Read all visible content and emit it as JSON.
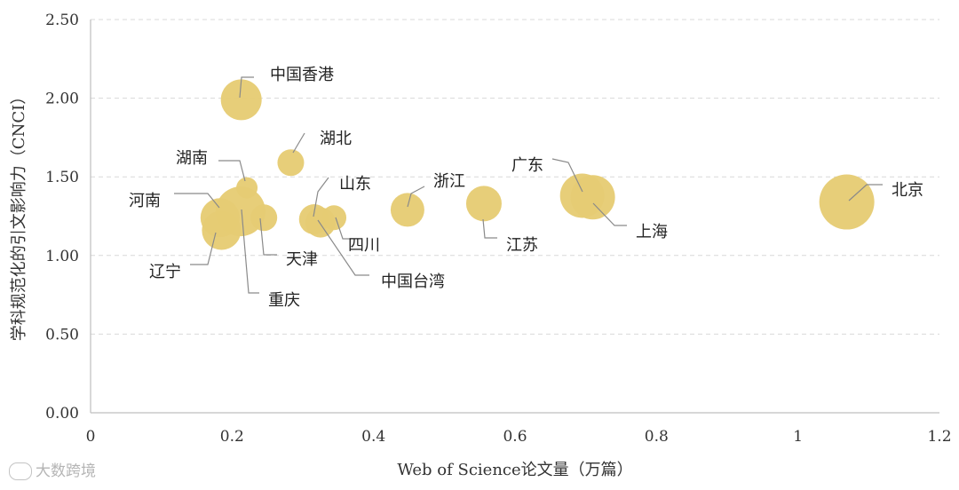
{
  "chart_data": {
    "type": "scatter",
    "xlabel": "Web of Science论文量（万篇）",
    "ylabel": "学科规范化的引文影响力（CNCI）",
    "xlim": [
      0,
      1.2
    ],
    "ylim": [
      0,
      2.5
    ],
    "x_ticks": [
      "0",
      "0.2",
      "0.4",
      "0.6",
      "0.8",
      "1",
      "1.2"
    ],
    "y_ticks": [
      "0.00",
      "0.50",
      "1.00",
      "1.50",
      "2.00",
      "2.50"
    ],
    "grid": "horizontal-dashed",
    "bubble_color": "#e6cc74",
    "points": [
      {
        "label": "中国香港",
        "x": 0.213,
        "y": 1.99
      },
      {
        "label": "湖北",
        "x": 0.283,
        "y": 1.59
      },
      {
        "label": "湖南",
        "x": 0.221,
        "y": 1.43
      },
      {
        "label": "河南",
        "x": 0.183,
        "y": 1.24
      },
      {
        "label": "辽宁",
        "x": 0.185,
        "y": 1.16
      },
      {
        "label": "重庆",
        "x": 0.212,
        "y": 1.28
      },
      {
        "label": "天津",
        "x": 0.245,
        "y": 1.24
      },
      {
        "label": "山东",
        "x": 0.316,
        "y": 1.23
      },
      {
        "label": "四川",
        "x": 0.344,
        "y": 1.24
      },
      {
        "label": "中国台湾",
        "x": 0.325,
        "y": 1.21
      },
      {
        "label": "浙江",
        "x": 0.448,
        "y": 1.29
      },
      {
        "label": "江苏",
        "x": 0.556,
        "y": 1.33
      },
      {
        "label": "广东",
        "x": 0.695,
        "y": 1.38
      },
      {
        "label": "上海",
        "x": 0.71,
        "y": 1.37
      },
      {
        "label": "北京",
        "x": 1.069,
        "y": 1.34
      }
    ]
  },
  "watermark": {
    "text": "大数跨境"
  }
}
